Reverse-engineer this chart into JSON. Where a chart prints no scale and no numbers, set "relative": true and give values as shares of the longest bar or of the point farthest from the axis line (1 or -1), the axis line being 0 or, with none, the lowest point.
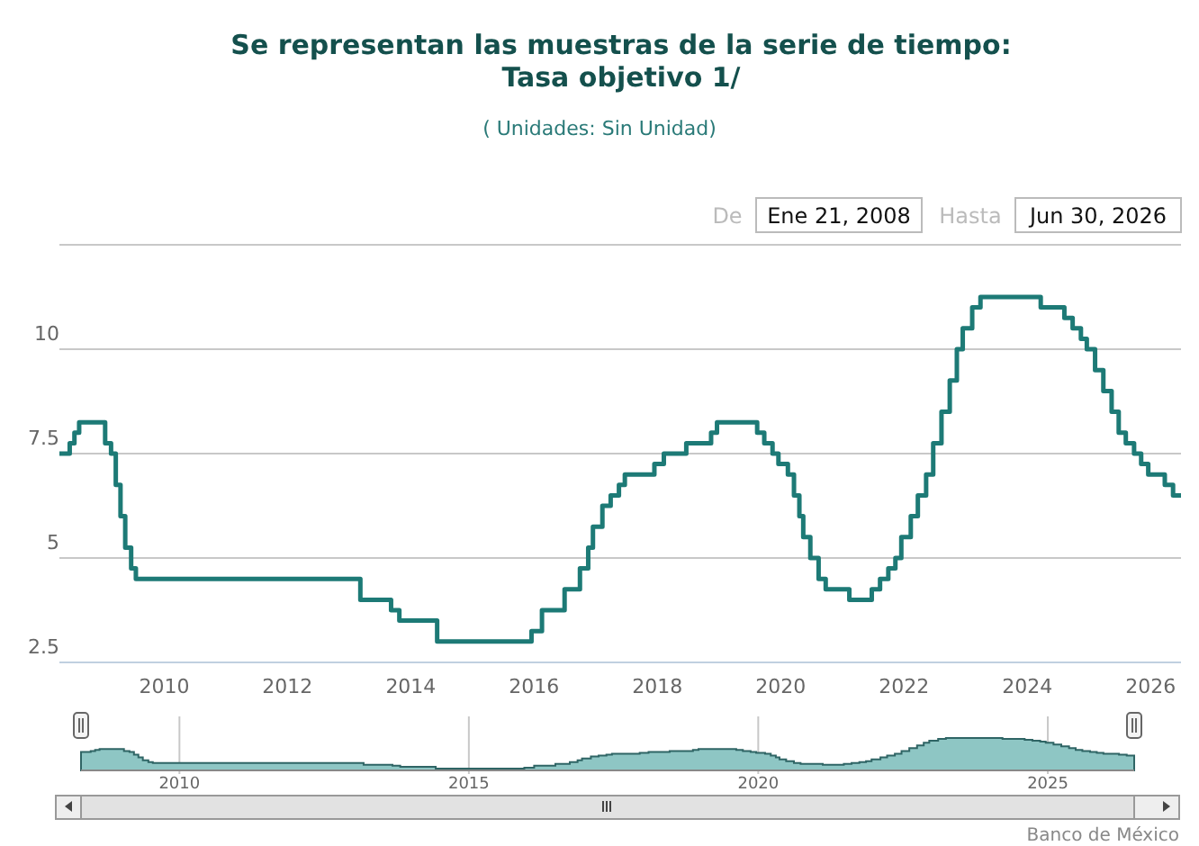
{
  "chart_data": [
    {
      "type": "step",
      "title": "Se representan las muestras de la serie de tiempo:\nTasa objetivo 1/",
      "subtitle": "( Unidades:  Sin Unidad)",
      "annotations": [
        "De",
        "Ene 21, 2008",
        "Hasta",
        "Jun 30, 2026"
      ],
      "x": [
        "2008-04-20",
        "2008-06-20",
        "2008-07-18",
        "2008-08-15",
        "2009-01-16",
        "2009-02-20",
        "2009-03-20",
        "2009-04-17",
        "2009-05-15",
        "2009-06-19",
        "2009-07-17",
        "2013-03-08",
        "2013-09-06",
        "2013-10-25",
        "2014-06-06",
        "2015-12-17",
        "2016-02-17",
        "2016-06-30",
        "2016-09-29",
        "2016-11-17",
        "2016-12-15",
        "2017-02-09",
        "2017-03-30",
        "2017-05-18",
        "2017-06-22",
        "2017-12-14",
        "2018-02-08",
        "2018-06-21",
        "2018-11-15",
        "2018-12-20",
        "2019-08-15",
        "2019-09-26",
        "2019-11-14",
        "2019-12-19",
        "2020-02-13",
        "2020-03-20",
        "2020-04-21",
        "2020-05-14",
        "2020-06-25",
        "2020-08-13",
        "2020-09-24",
        "2021-02-11",
        "2021-06-24",
        "2021-08-12",
        "2021-09-30",
        "2021-11-11",
        "2021-12-16",
        "2022-02-10",
        "2022-03-24",
        "2022-05-12",
        "2022-06-23",
        "2022-08-11",
        "2022-09-29",
        "2022-11-10",
        "2022-12-15",
        "2023-02-09",
        "2023-03-30",
        "2024-03-21",
        "2024-08-08",
        "2024-09-26",
        "2024-11-14",
        "2024-12-19",
        "2025-02-06",
        "2025-03-27",
        "2025-05-15",
        "2025-06-26",
        "2025-08-07",
        "2025-09-25",
        "2025-11-06",
        "2025-12-18",
        "2026-03-26",
        "2026-05-14",
        "2026-06-30"
      ],
      "series": [
        {
          "color": "#1d7a76",
          "values": [
            7.5,
            7.75,
            8.0,
            8.25,
            7.75,
            7.5,
            6.75,
            6.0,
            5.25,
            4.75,
            4.5,
            4.0,
            3.75,
            3.5,
            3.0,
            3.25,
            3.75,
            4.25,
            4.75,
            5.25,
            5.75,
            6.25,
            6.5,
            6.75,
            7.0,
            7.25,
            7.5,
            7.75,
            8.0,
            8.25,
            8.0,
            7.75,
            7.5,
            7.25,
            7.0,
            6.5,
            6.0,
            5.5,
            5.0,
            4.5,
            4.25,
            4.0,
            4.25,
            4.5,
            4.75,
            5.0,
            5.5,
            6.0,
            6.5,
            7.0,
            7.75,
            8.5,
            9.25,
            10.0,
            10.5,
            11.0,
            11.25,
            11.0,
            10.75,
            10.5,
            10.25,
            10.0,
            9.5,
            9.0,
            8.5,
            8.0,
            7.75,
            7.5,
            7.25,
            7.0,
            6.75,
            6.5,
            6.5
          ]
        }
      ],
      "xlim": [
        "2008-04-20",
        "2026-06-30"
      ],
      "xticks": [
        "2010",
        "2012",
        "2014",
        "2016",
        "2018",
        "2020",
        "2022",
        "2024",
        "2026"
      ],
      "ylim": [
        2.5,
        12.5
      ],
      "yticks": [
        2.5,
        5,
        7.5,
        10,
        {
          "value": 12.5,
          "label": null
        }
      ],
      "grid": "y"
    },
    {
      "type": "area",
      "relative": true,
      "annotations": [
        "Banco de México"
      ],
      "x": [
        "2008-04-20",
        "2008-06-20",
        "2008-07-18",
        "2008-08-15",
        "2009-01-16",
        "2009-02-20",
        "2009-03-20",
        "2009-04-17",
        "2009-05-15",
        "2009-06-19",
        "2009-07-17",
        "2013-03-08",
        "2013-09-06",
        "2013-10-25",
        "2014-06-06",
        "2015-12-17",
        "2016-02-17",
        "2016-06-30",
        "2016-09-29",
        "2016-11-17",
        "2016-12-15",
        "2017-02-09",
        "2017-03-30",
        "2017-05-18",
        "2017-06-22",
        "2017-12-14",
        "2018-02-08",
        "2018-06-21",
        "2018-11-15",
        "2018-12-20",
        "2019-08-15",
        "2019-09-26",
        "2019-11-14",
        "2019-12-19",
        "2020-02-13",
        "2020-03-20",
        "2020-04-21",
        "2020-05-14",
        "2020-06-25",
        "2020-08-13",
        "2020-09-24",
        "2021-02-11",
        "2021-06-24",
        "2021-08-12",
        "2021-09-30",
        "2021-11-11",
        "2021-12-16",
        "2022-02-10",
        "2022-03-24",
        "2022-05-12",
        "2022-06-23",
        "2022-08-11",
        "2022-09-29",
        "2022-11-10",
        "2022-12-15",
        "2023-02-09",
        "2023-03-30",
        "2024-03-21",
        "2024-08-08",
        "2024-09-26",
        "2024-11-14",
        "2024-12-19",
        "2025-02-06",
        "2025-03-27",
        "2025-05-15",
        "2025-06-26",
        "2025-08-07",
        "2025-09-25",
        "2025-11-06",
        "2025-12-18",
        "2026-03-26",
        "2026-05-14",
        "2026-06-30"
      ],
      "series": [
        {
          "color": "#8ec6c4",
          "values": [
            0.571,
            0.6,
            0.629,
            0.657,
            0.6,
            0.571,
            0.486,
            0.4,
            0.314,
            0.257,
            0.229,
            0.171,
            0.143,
            0.114,
            0.057,
            0.086,
            0.143,
            0.2,
            0.257,
            0.314,
            0.371,
            0.429,
            0.457,
            0.486,
            0.514,
            0.543,
            0.571,
            0.6,
            0.629,
            0.657,
            0.629,
            0.6,
            0.571,
            0.543,
            0.514,
            0.457,
            0.4,
            0.343,
            0.286,
            0.229,
            0.2,
            0.171,
            0.2,
            0.229,
            0.257,
            0.286,
            0.343,
            0.4,
            0.457,
            0.514,
            0.6,
            0.686,
            0.771,
            0.857,
            0.914,
            0.971,
            1,
            0.971,
            0.943,
            0.914,
            0.886,
            0.857,
            0.8,
            0.743,
            0.686,
            0.629,
            0.6,
            0.571,
            0.543,
            0.514,
            0.486,
            0.457,
            0.457
          ]
        }
      ],
      "xlim": [
        "2008-04-20",
        "2026-06-30"
      ],
      "xticks": [
        "2010",
        "2015",
        "2020",
        "2025"
      ],
      "grid": "x",
      "tick_labels": "x"
    }
  ]
}
